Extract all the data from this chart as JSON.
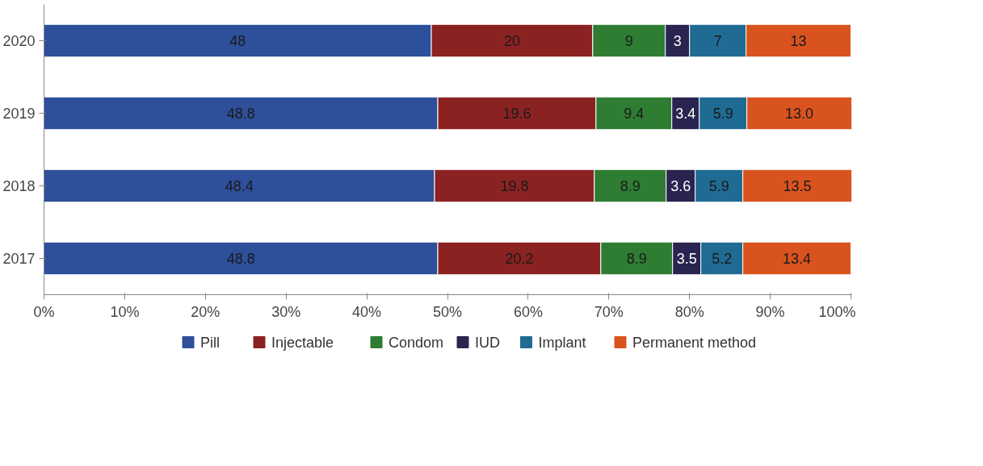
{
  "chart_data": {
    "type": "bar",
    "orientation": "horizontal",
    "stacked": true,
    "categories": [
      "2020",
      "2019",
      "2018",
      "2017"
    ],
    "series": [
      {
        "name": "Pill",
        "color": "#2e4f9a",
        "values": [
          48,
          48.8,
          48.4,
          48.8
        ],
        "value_labels": [
          "48",
          "48.8",
          "48.4",
          "48.8"
        ]
      },
      {
        "name": "Injectable",
        "color": "#8b2222",
        "values": [
          20,
          19.6,
          19.8,
          20.2
        ],
        "value_labels": [
          "20",
          "19.6",
          "19.8",
          "20.2"
        ]
      },
      {
        "name": "Condom",
        "color": "#2e7d32",
        "values": [
          9,
          9.4,
          8.9,
          8.9
        ],
        "value_labels": [
          "9",
          "9.4",
          "8.9",
          "8.9"
        ]
      },
      {
        "name": "IUD",
        "color": "#2a2450",
        "values": [
          3,
          3.4,
          3.6,
          3.5
        ],
        "value_labels": [
          "3",
          "3.4",
          "3.6",
          "3.5"
        ]
      },
      {
        "name": "Implant",
        "color": "#1f6b94",
        "values": [
          7,
          5.9,
          5.9,
          5.2
        ],
        "value_labels": [
          "7",
          "5.9",
          "5.9",
          "5.2"
        ]
      },
      {
        "name": "Permanent method",
        "color": "#d9531e",
        "values": [
          13,
          13.0,
          13.5,
          13.4
        ],
        "value_labels": [
          "13",
          "13.0",
          "13.5",
          "13.4"
        ]
      }
    ],
    "xlim": [
      0,
      100.1
    ],
    "xticks": [
      {
        "value": 0,
        "label": "0%"
      },
      {
        "value": 10,
        "label": "10%"
      },
      {
        "value": 20,
        "label": "20%"
      },
      {
        "value": 30,
        "label": "30%"
      },
      {
        "value": 40,
        "label": "40%"
      },
      {
        "value": 50,
        "label": "50%"
      },
      {
        "value": 60,
        "label": "60%"
      },
      {
        "value": 70,
        "label": "70%"
      },
      {
        "value": 80,
        "label": "80%"
      },
      {
        "value": 90,
        "label": "90%"
      },
      {
        "value": 100,
        "label": "100%"
      }
    ],
    "grid": false,
    "legend": "bottom"
  }
}
